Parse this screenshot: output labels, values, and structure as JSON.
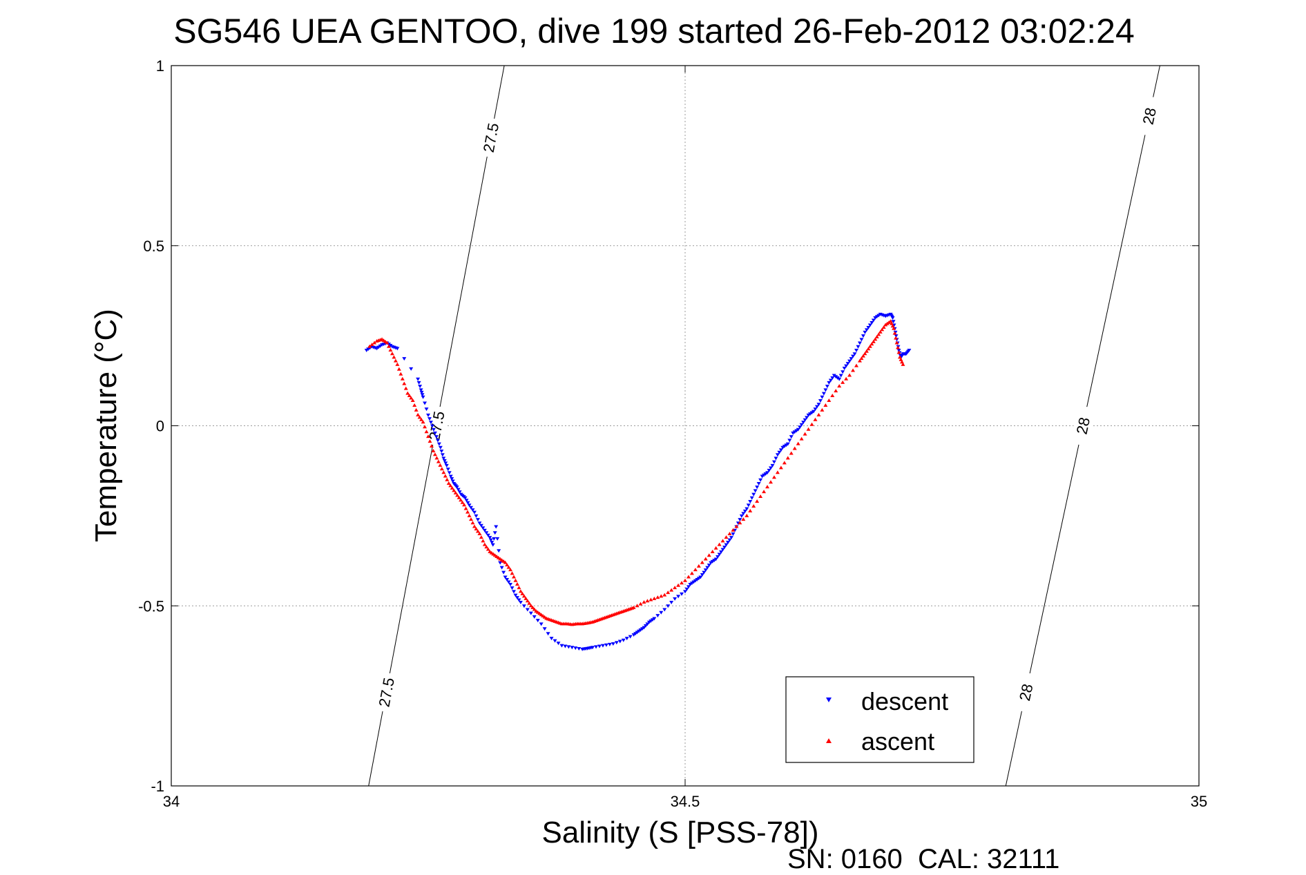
{
  "chart_data": {
    "type": "scatter",
    "title": "SG546 UEA GENTOO, dive 199 started 26-Feb-2012 03:02:24",
    "xlabel": "Salinity (S [PSS-78])",
    "ylabel": "Temperature (°C)",
    "footer": "SN: 0160  CAL: 32111",
    "xlim": [
      34,
      35
    ],
    "ylim": [
      -1,
      1
    ],
    "xticks": [
      34,
      34.5,
      35
    ],
    "xtick_labels": [
      "34",
      "34.5",
      "35"
    ],
    "yticks": [
      1,
      0.5,
      0,
      -0.5,
      -1
    ],
    "ytick_labels": [
      "1",
      "0.5",
      "0",
      "-0.5",
      "-1"
    ],
    "grid": true,
    "legend_position": "bottom-right",
    "series": [
      {
        "name": "descent",
        "marker": "triangle-down",
        "color": "#0000ff",
        "x": [
          34.19,
          34.195,
          34.2,
          34.205,
          34.21,
          34.215,
          34.22,
          34.24,
          34.243,
          34.245,
          34.25,
          34.254,
          34.258,
          34.262,
          34.265,
          34.268,
          34.272,
          34.275,
          34.278,
          34.282,
          34.286,
          34.29,
          34.295,
          34.3,
          34.305,
          34.31,
          34.313,
          34.316,
          34.32,
          34.325,
          34.33,
          34.335,
          34.34,
          34.35,
          34.36,
          34.37,
          34.38,
          34.39,
          34.4,
          34.405,
          34.41,
          34.42,
          34.43,
          34.44,
          34.45,
          34.455,
          34.46,
          34.465,
          34.47,
          34.48,
          34.49,
          34.5,
          34.505,
          34.51,
          34.515,
          34.52,
          34.525,
          34.53,
          34.535,
          34.54,
          34.545,
          34.55,
          34.555,
          34.56,
          34.565,
          34.57,
          34.575,
          34.58,
          34.585,
          34.59,
          34.595,
          34.6,
          34.605,
          34.61,
          34.615,
          34.62,
          34.625,
          34.63,
          34.635,
          34.64,
          34.645,
          34.65,
          34.655,
          34.66,
          34.665,
          34.67,
          34.675,
          34.68,
          34.685,
          34.69,
          34.695,
          34.7,
          34.702,
          34.704,
          34.706,
          34.708,
          34.71,
          34.712,
          34.715,
          34.718
        ],
        "y": [
          0.21,
          0.22,
          0.215,
          0.225,
          0.23,
          0.22,
          0.215,
          0.13,
          0.1,
          0.08,
          0.03,
          0.0,
          -0.03,
          -0.06,
          -0.09,
          -0.11,
          -0.14,
          -0.16,
          -0.17,
          -0.19,
          -0.2,
          -0.22,
          -0.24,
          -0.27,
          -0.29,
          -0.31,
          -0.33,
          -0.28,
          -0.38,
          -0.42,
          -0.44,
          -0.47,
          -0.49,
          -0.52,
          -0.55,
          -0.59,
          -0.61,
          -0.615,
          -0.62,
          -0.618,
          -0.615,
          -0.61,
          -0.605,
          -0.595,
          -0.58,
          -0.57,
          -0.56,
          -0.545,
          -0.535,
          -0.51,
          -0.48,
          -0.46,
          -0.44,
          -0.43,
          -0.42,
          -0.4,
          -0.38,
          -0.37,
          -0.35,
          -0.33,
          -0.31,
          -0.28,
          -0.25,
          -0.23,
          -0.2,
          -0.17,
          -0.14,
          -0.13,
          -0.11,
          -0.08,
          -0.06,
          -0.05,
          -0.02,
          -0.01,
          0.01,
          0.03,
          0.04,
          0.06,
          0.09,
          0.12,
          0.14,
          0.13,
          0.16,
          0.18,
          0.2,
          0.23,
          0.26,
          0.28,
          0.3,
          0.31,
          0.305,
          0.31,
          0.3,
          0.27,
          0.24,
          0.21,
          0.19,
          0.2,
          0.2,
          0.21
        ]
      },
      {
        "name": "ascent",
        "marker": "triangle-up",
        "color": "#ff0000",
        "x": [
          34.193,
          34.2,
          34.205,
          34.21,
          34.215,
          34.22,
          34.225,
          34.23,
          34.235,
          34.24,
          34.245,
          34.25,
          34.255,
          34.26,
          34.265,
          34.27,
          34.275,
          34.28,
          34.285,
          34.29,
          34.295,
          34.3,
          34.305,
          34.31,
          34.315,
          34.32,
          34.325,
          34.33,
          34.335,
          34.34,
          34.345,
          34.35,
          34.355,
          34.36,
          34.365,
          34.37,
          34.375,
          34.38,
          34.385,
          34.39,
          34.395,
          34.4,
          34.405,
          34.41,
          34.415,
          34.42,
          34.425,
          34.43,
          34.435,
          34.44,
          34.445,
          34.45,
          34.46,
          34.47,
          34.48,
          34.49,
          34.5,
          34.51,
          34.52,
          34.53,
          34.54,
          34.55,
          34.56,
          34.57,
          34.58,
          34.59,
          34.6,
          34.61,
          34.62,
          34.63,
          34.64,
          34.65,
          34.66,
          34.67,
          34.675,
          34.68,
          34.685,
          34.69,
          34.695,
          34.7,
          34.703,
          34.706,
          34.709,
          34.712
        ],
        "y": [
          0.22,
          0.235,
          0.24,
          0.23,
          0.2,
          0.17,
          0.13,
          0.09,
          0.07,
          0.03,
          0.01,
          -0.03,
          -0.07,
          -0.1,
          -0.13,
          -0.16,
          -0.18,
          -0.2,
          -0.22,
          -0.25,
          -0.28,
          -0.3,
          -0.33,
          -0.35,
          -0.36,
          -0.37,
          -0.38,
          -0.4,
          -0.43,
          -0.46,
          -0.48,
          -0.5,
          -0.515,
          -0.525,
          -0.535,
          -0.54,
          -0.545,
          -0.55,
          -0.55,
          -0.552,
          -0.55,
          -0.55,
          -0.548,
          -0.545,
          -0.54,
          -0.535,
          -0.53,
          -0.525,
          -0.52,
          -0.515,
          -0.51,
          -0.505,
          -0.49,
          -0.48,
          -0.47,
          -0.45,
          -0.43,
          -0.4,
          -0.37,
          -0.34,
          -0.31,
          -0.28,
          -0.25,
          -0.21,
          -0.17,
          -0.13,
          -0.09,
          -0.05,
          -0.01,
          0.03,
          0.07,
          0.11,
          0.14,
          0.18,
          0.2,
          0.22,
          0.24,
          0.26,
          0.28,
          0.29,
          0.27,
          0.23,
          0.19,
          0.17
        ]
      }
    ],
    "density_contours": [
      {
        "label": "27.5",
        "x": [
          34.192,
          34.324
        ],
        "y": [
          -1,
          1
        ]
      },
      {
        "label": "28",
        "x": [
          34.812,
          34.962
        ],
        "y": [
          -1,
          1
        ]
      }
    ]
  },
  "contour_labels": {
    "left": [
      "27.5",
      "27.5",
      "27.5"
    ],
    "right": [
      "28",
      "28",
      "28"
    ]
  },
  "legend": {
    "descent": "descent",
    "ascent": "ascent"
  }
}
